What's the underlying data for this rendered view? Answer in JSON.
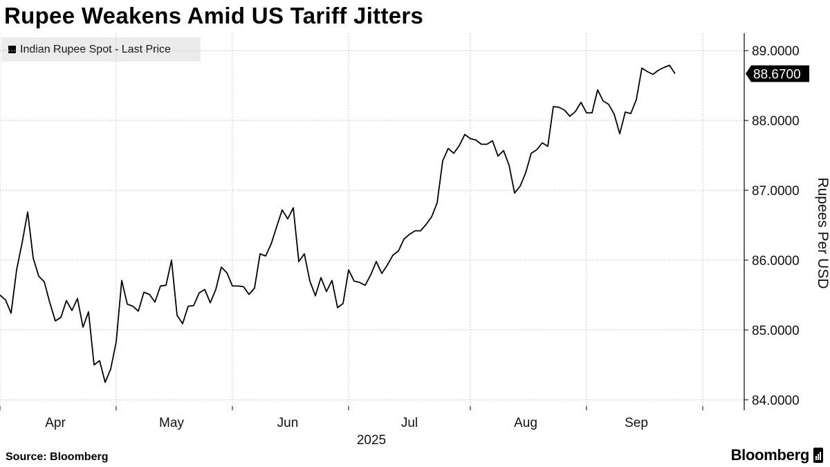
{
  "chart_data": {
    "type": "line",
    "title": "Rupee Weakens Amid US Tariff Jitters",
    "legend": "Indian Rupee Spot - Last Price",
    "xlabel": "2025",
    "ylabel": "Rupees Per USD",
    "ylim": [
      83.85,
      89.25
    ],
    "yticks": [
      84,
      85,
      86,
      87,
      88,
      89
    ],
    "ytick_labels": [
      "84.0000",
      "85.0000",
      "86.0000",
      "87.0000",
      "88.0000",
      "89.0000"
    ],
    "xticks": [
      "Apr",
      "May",
      "Jun",
      "Jul",
      "Aug",
      "Sep"
    ],
    "x_index_range": [
      0,
      131
    ],
    "xtick_positions": [
      10,
      31,
      52,
      74,
      95,
      115
    ],
    "xgrid_positions": [
      0,
      21,
      42,
      63,
      85,
      106,
      127
    ],
    "last_value": 88.67,
    "last_value_label": "88.6700",
    "series": [
      {
        "name": "Indian Rupee Spot - Last Price",
        "values": [
          85.5,
          85.43,
          85.24,
          85.86,
          86.25,
          86.69,
          86.03,
          85.77,
          85.69,
          85.39,
          85.13,
          85.18,
          85.42,
          85.28,
          85.45,
          85.04,
          85.26,
          84.5,
          84.56,
          84.25,
          84.44,
          84.83,
          85.71,
          85.37,
          85.34,
          85.27,
          85.54,
          85.51,
          85.4,
          85.63,
          85.64,
          86.0,
          85.21,
          85.09,
          85.34,
          85.35,
          85.53,
          85.58,
          85.39,
          85.58,
          85.9,
          85.82,
          85.63,
          85.63,
          85.62,
          85.51,
          85.6,
          86.09,
          86.06,
          86.23,
          86.48,
          86.72,
          86.59,
          86.75,
          85.98,
          86.09,
          85.7,
          85.49,
          85.75,
          85.55,
          85.71,
          85.32,
          85.38,
          85.86,
          85.7,
          85.68,
          85.64,
          85.79,
          85.98,
          85.81,
          85.93,
          86.07,
          86.13,
          86.3,
          86.37,
          86.42,
          86.42,
          86.51,
          86.62,
          86.82,
          87.42,
          87.6,
          87.53,
          87.64,
          87.8,
          87.74,
          87.72,
          87.66,
          87.66,
          87.71,
          87.49,
          87.57,
          87.36,
          86.96,
          87.06,
          87.25,
          87.53,
          87.58,
          87.68,
          87.63,
          88.2,
          88.19,
          88.15,
          88.06,
          88.13,
          88.26,
          88.11,
          88.11,
          88.44,
          88.28,
          88.23,
          88.09,
          87.81,
          88.12,
          88.1,
          88.3,
          88.75,
          88.7,
          88.66,
          88.72,
          88.76,
          88.79,
          88.67
        ]
      }
    ]
  },
  "source": "Source: Bloomberg",
  "brand": "Bloomberg"
}
